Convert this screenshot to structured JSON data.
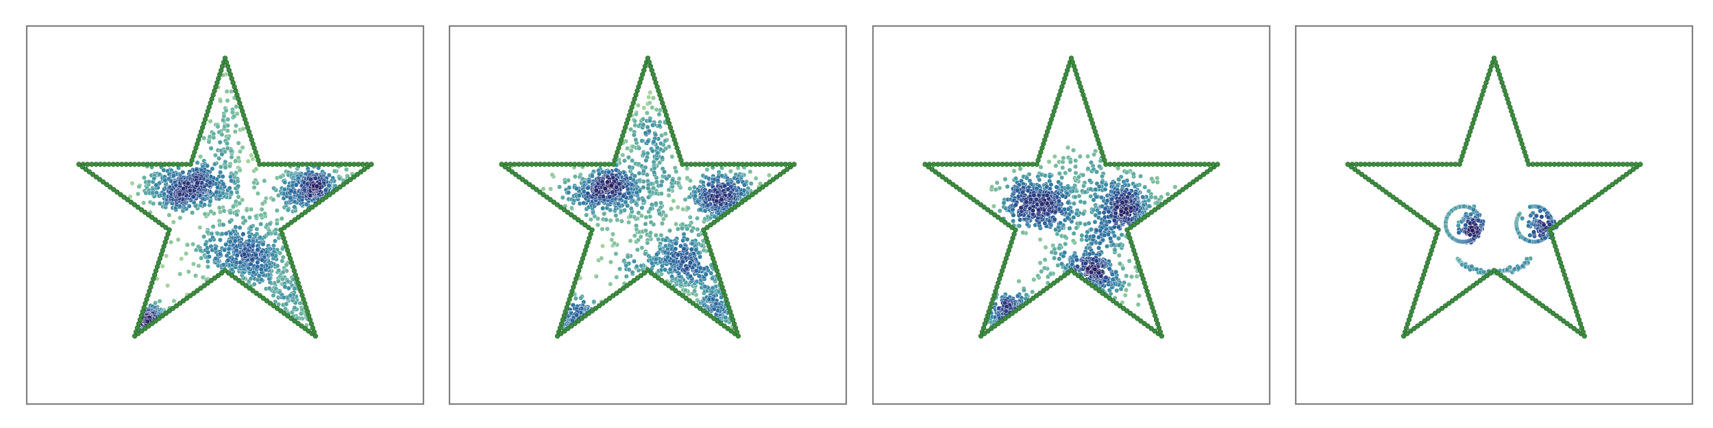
{
  "figure": {
    "background": "#ffffff",
    "frame_color": "#7f7f7f",
    "outline_color": "#3d8c40",
    "outline_edge_color": "#1f5f23",
    "colormap": [
      "#a6d49b",
      "#6fb7a0",
      "#3e8fa6",
      "#2d6a9f",
      "#2a3f85",
      "#281b5c"
    ]
  },
  "chart_data": [
    {
      "type": "scatter",
      "title": "",
      "xlabel": "",
      "ylabel": "",
      "axes_visible": false,
      "grid": false,
      "legend": "none",
      "xlim": [
        -1.15,
        1.15
      ],
      "ylim": [
        -1.15,
        1.05
      ],
      "series": [
        {
          "role": "outline",
          "shape": "five-point star",
          "point_count": 260
        },
        {
          "role": "density-cloud",
          "blobs": [
            {
              "cx": -0.26,
              "cy": 0.16,
              "sx": 0.13,
              "sy": 0.07,
              "n": 420
            },
            {
              "cx": 0.56,
              "cy": 0.15,
              "sx": 0.11,
              "sy": 0.07,
              "n": 300
            },
            {
              "cx": 0.16,
              "cy": -0.3,
              "sx": 0.16,
              "sy": 0.11,
              "n": 380
            },
            {
              "cx": -0.48,
              "cy": -0.75,
              "sx": 0.13,
              "sy": 0.06,
              "n": 180
            },
            {
              "cx": 0.0,
              "cy": 0.38,
              "sx": 0.06,
              "sy": 0.26,
              "n": 140
            },
            {
              "cx": 0.45,
              "cy": -0.6,
              "sx": 0.08,
              "sy": 0.14,
              "n": 80
            },
            {
              "cx": 0.1,
              "cy": -0.05,
              "sx": 0.35,
              "sy": 0.28,
              "n": 120
            }
          ]
        }
      ]
    },
    {
      "type": "scatter",
      "title": "",
      "xlabel": "",
      "ylabel": "",
      "axes_visible": false,
      "grid": false,
      "legend": "none",
      "xlim": [
        -1.15,
        1.15
      ],
      "ylim": [
        -1.15,
        1.05
      ],
      "series": [
        {
          "role": "outline",
          "shape": "five-point star",
          "point_count": 260
        },
        {
          "role": "density-cloud",
          "blobs": [
            {
              "cx": -0.25,
              "cy": 0.14,
              "sx": 0.14,
              "sy": 0.08,
              "n": 400
            },
            {
              "cx": 0.5,
              "cy": 0.1,
              "sx": 0.11,
              "sy": 0.08,
              "n": 300
            },
            {
              "cx": 0.18,
              "cy": -0.35,
              "sx": 0.15,
              "sy": 0.12,
              "n": 330
            },
            {
              "cx": -0.36,
              "cy": -0.75,
              "sx": 0.12,
              "sy": 0.07,
              "n": 150
            },
            {
              "cx": 0.0,
              "cy": 0.4,
              "sx": 0.1,
              "sy": 0.2,
              "n": 150
            },
            {
              "cx": 0.45,
              "cy": -0.65,
              "sx": 0.07,
              "sy": 0.13,
              "n": 90
            },
            {
              "cx": 0.05,
              "cy": -0.05,
              "sx": 0.38,
              "sy": 0.3,
              "n": 160
            }
          ]
        }
      ]
    },
    {
      "type": "scatter",
      "title": "",
      "xlabel": "",
      "ylabel": "",
      "axes_visible": false,
      "grid": false,
      "legend": "none",
      "xlim": [
        -1.15,
        1.15
      ],
      "ylim": [
        -1.15,
        1.05
      ],
      "series": [
        {
          "role": "outline",
          "shape": "five-point star",
          "point_count": 260
        },
        {
          "role": "density-cloud",
          "blobs": [
            {
              "cx": -0.22,
              "cy": 0.06,
              "sx": 0.12,
              "sy": 0.09,
              "n": 380
            },
            {
              "cx": 0.38,
              "cy": 0.02,
              "sx": 0.1,
              "sy": 0.1,
              "n": 260
            },
            {
              "cx": 0.08,
              "cy": -0.45,
              "sx": 0.12,
              "sy": 0.1,
              "n": 240
            },
            {
              "cx": -0.33,
              "cy": -0.68,
              "sx": 0.09,
              "sy": 0.06,
              "n": 130
            },
            {
              "cx": 0.2,
              "cy": -0.12,
              "sx": 0.18,
              "sy": 0.22,
              "n": 200
            },
            {
              "cx": 0.05,
              "cy": 0.2,
              "sx": 0.18,
              "sy": 0.12,
              "n": 100
            }
          ]
        }
      ]
    },
    {
      "type": "scatter",
      "title": "",
      "xlabel": "",
      "ylabel": "",
      "axes_visible": false,
      "grid": false,
      "legend": "none",
      "xlim": [
        -1.15,
        1.15
      ],
      "ylim": [
        -1.15,
        1.05
      ],
      "series": [
        {
          "role": "outline",
          "shape": "five-point star",
          "point_count": 260
        },
        {
          "role": "face",
          "features": [
            {
              "feature": "left-eye",
              "cx": -0.2,
              "cy": -0.08,
              "r": 0.115,
              "n": 150
            },
            {
              "feature": "right-eye",
              "cx": 0.26,
              "cy": -0.08,
              "r": 0.115,
              "n": 150
            },
            {
              "feature": "smile",
              "cx": 0.0,
              "cy": -0.26,
              "r": 0.25,
              "arc_start_deg": 200,
              "arc_end_deg": 340,
              "n": 70
            }
          ]
        }
      ]
    }
  ]
}
